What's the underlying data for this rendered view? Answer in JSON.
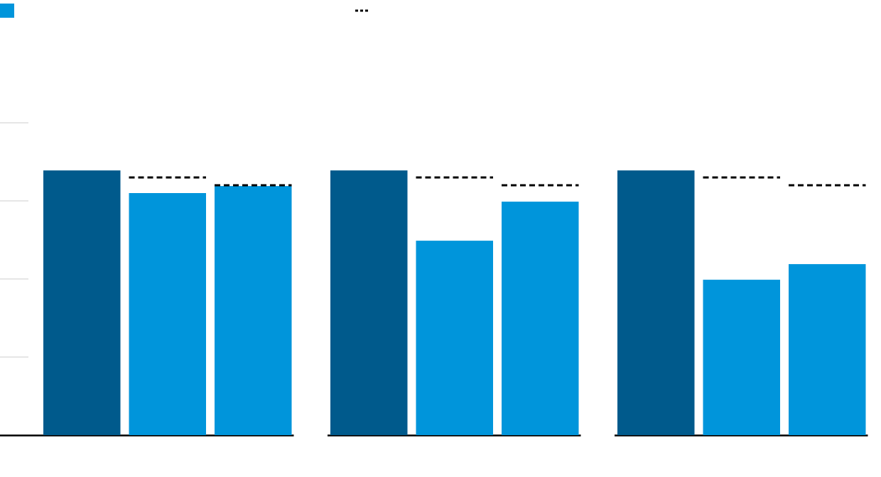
{
  "chart_data": {
    "type": "bar",
    "ylim": [
      0,
      5
    ],
    "yticks": [
      1,
      2,
      3,
      4
    ],
    "grid": true,
    "series": [
      {
        "color": "#005a8c",
        "values": [
          3.39,
          3.39,
          3.39
        ]
      },
      {
        "color": "#0095db",
        "values": [
          3.1,
          2.49,
          1.99
        ],
        "targets": [
          3.3,
          3.3,
          3.3
        ]
      },
      {
        "color": "#0095db",
        "values": [
          3.19,
          2.99,
          2.19
        ],
        "targets": [
          3.2,
          3.2,
          3.2
        ]
      }
    ],
    "target_color": "#000000"
  }
}
